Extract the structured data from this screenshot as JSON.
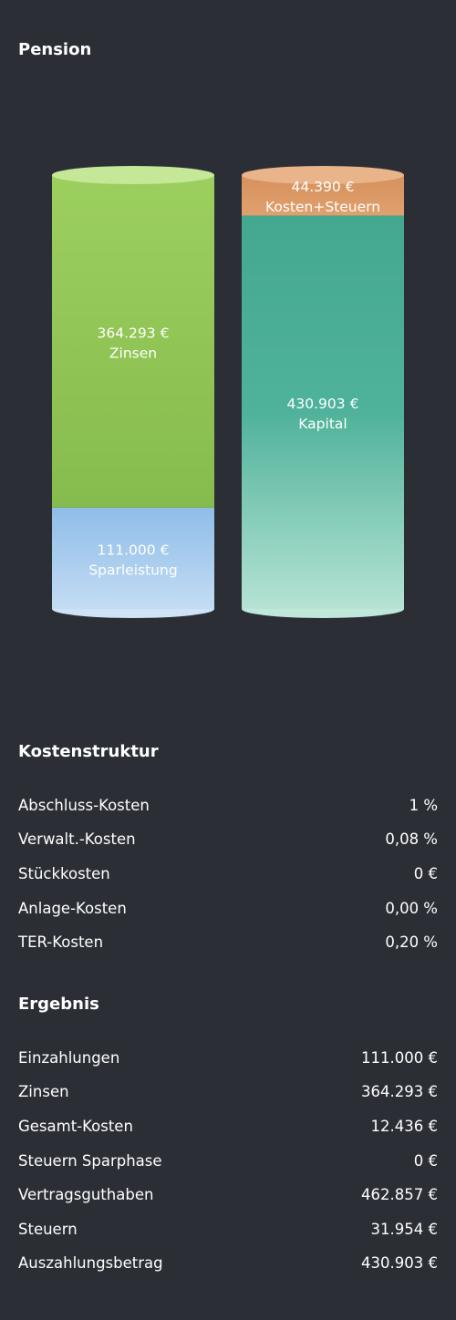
{
  "pension": {
    "title": "Pension"
  },
  "chart_data": {
    "type": "bar",
    "stacked": true,
    "categories": [
      "",
      ""
    ],
    "series": [
      {
        "name": "Sparleistung",
        "values": [
          111000,
          0
        ],
        "color": "#a8cdf0",
        "label": "111.000 €"
      },
      {
        "name": "Zinsen",
        "values": [
          364293,
          0
        ],
        "color": "#8fc253",
        "label": "364.293 €"
      },
      {
        "name": "Kapital",
        "values": [
          0,
          430903
        ],
        "color": "#4cae98",
        "label": "430.903 €"
      },
      {
        "name": "Kosten+Steuern",
        "values": [
          0,
          44390
        ],
        "color": "#d9925f",
        "label": "44.390 €"
      }
    ],
    "title": "",
    "xlabel": "",
    "ylabel": "",
    "grid": false
  },
  "kostenstruktur": {
    "title": "Kostenstruktur",
    "rows": [
      {
        "label": "Abschluss-Kosten",
        "value": "1 %"
      },
      {
        "label": "Verwalt.-Kosten",
        "value": "0,08 %"
      },
      {
        "label": "Stückkosten",
        "value": "0 €"
      },
      {
        "label": "Anlage-Kosten",
        "value": "0,00 %"
      },
      {
        "label": "TER-Kosten",
        "value": "0,20 %"
      }
    ]
  },
  "ergebnis": {
    "title": "Ergebnis",
    "rows": [
      {
        "label": "Einzahlungen",
        "value": "111.000 €"
      },
      {
        "label": "Zinsen",
        "value": "364.293 €"
      },
      {
        "label": "Gesamt-Kosten",
        "value": "12.436 €"
      },
      {
        "label": "Steuern Sparphase",
        "value": "0 €"
      },
      {
        "label": "Vertragsguthaben",
        "value": "462.857 €"
      },
      {
        "label": "Steuern",
        "value": "31.954 €"
      },
      {
        "label": "Auszahlungsbetrag",
        "value": "430.903 €"
      }
    ]
  }
}
